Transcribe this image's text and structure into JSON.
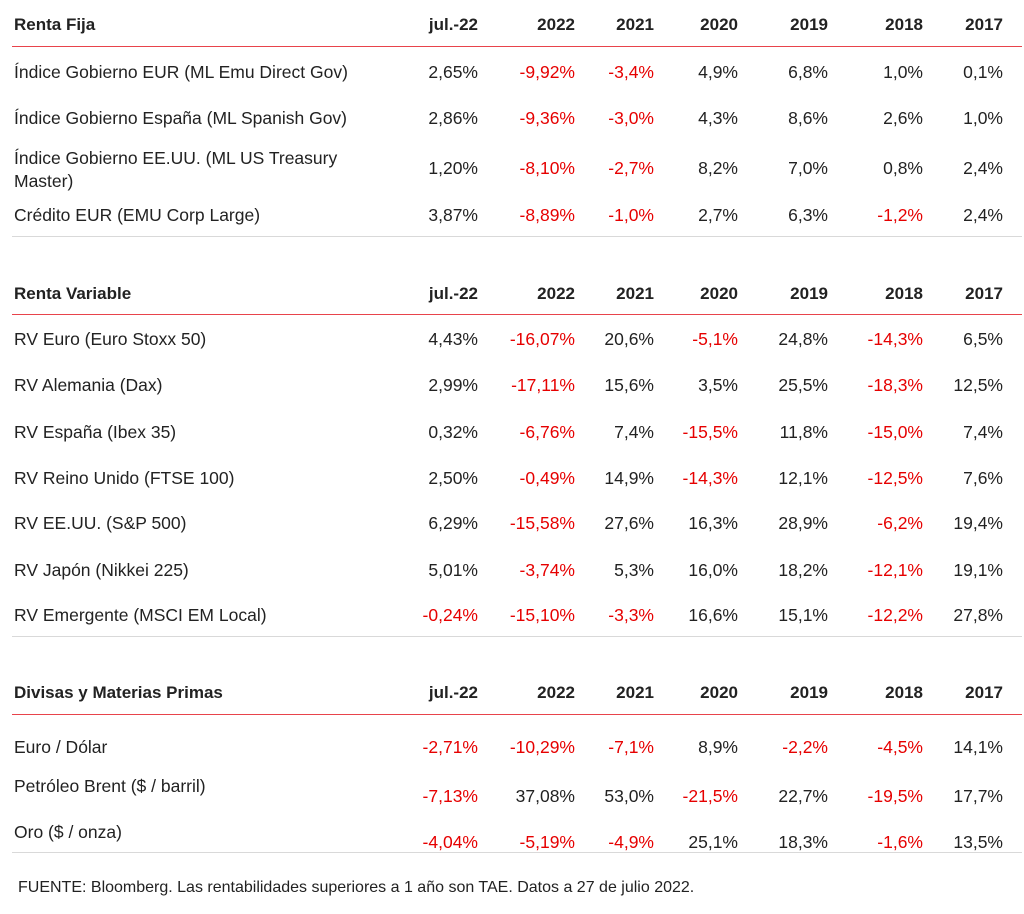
{
  "colors": {
    "negative": "#e60000",
    "header_rule": "#e8434b",
    "text": "#222222"
  },
  "columns": [
    "jul.-22",
    "2022",
    "2021",
    "2020",
    "2019",
    "2018",
    "2017"
  ],
  "chart_data": {
    "type": "table",
    "sections": [
      {
        "title": "Renta Fija",
        "rows": [
          {
            "label": "Índice Gobierno EUR (ML Emu Direct Gov)",
            "values": [
              "2,65%",
              "-9,92%",
              "-3,4%",
              "4,9%",
              "6,8%",
              "1,0%",
              "0,1%"
            ]
          },
          {
            "label": "Índice Gobierno España (ML Spanish Gov)",
            "values": [
              "2,86%",
              "-9,36%",
              "-3,0%",
              "4,3%",
              "8,6%",
              "2,6%",
              "1,0%"
            ]
          },
          {
            "label": "Índice Gobierno EE.UU. (ML US Treasury Master)",
            "values": [
              "1,20%",
              "-8,10%",
              "-2,7%",
              "8,2%",
              "7,0%",
              "0,8%",
              "2,4%"
            ]
          },
          {
            "label": "Crédito EUR (EMU Corp Large)",
            "values": [
              "3,87%",
              "-8,89%",
              "-1,0%",
              "2,7%",
              "6,3%",
              "-1,2%",
              "2,4%"
            ]
          }
        ]
      },
      {
        "title": "Renta Variable",
        "rows": [
          {
            "label": "RV Euro (Euro Stoxx 50)",
            "values": [
              "4,43%",
              "-16,07%",
              "20,6%",
              "-5,1%",
              "24,8%",
              "-14,3%",
              "6,5%"
            ]
          },
          {
            "label": "RV Alemania (Dax)",
            "values": [
              "2,99%",
              "-17,11%",
              "15,6%",
              "3,5%",
              "25,5%",
              "-18,3%",
              "12,5%"
            ]
          },
          {
            "label": "RV España (Ibex 35)",
            "values": [
              "0,32%",
              "-6,76%",
              "7,4%",
              "-15,5%",
              "11,8%",
              "-15,0%",
              "7,4%"
            ]
          },
          {
            "label": "RV Reino Unido (FTSE 100)",
            "values": [
              "2,50%",
              "-0,49%",
              "14,9%",
              "-14,3%",
              "12,1%",
              "-12,5%",
              "7,6%"
            ]
          },
          {
            "label": "RV EE.UU. (S&P 500)",
            "values": [
              "6,29%",
              "-15,58%",
              "27,6%",
              "16,3%",
              "28,9%",
              "-6,2%",
              "19,4%"
            ]
          },
          {
            "label": "RV Japón (Nikkei 225)",
            "values": [
              "5,01%",
              "-3,74%",
              "5,3%",
              "16,0%",
              "18,2%",
              "-12,1%",
              "19,1%"
            ]
          },
          {
            "label": "RV Emergente (MSCI EM Local)",
            "values": [
              "-0,24%",
              "-15,10%",
              "-3,3%",
              "16,6%",
              "15,1%",
              "-12,2%",
              "27,8%"
            ]
          }
        ]
      },
      {
        "title": "Divisas y Materias Primas",
        "rows": [
          {
            "label": "Euro / Dólar",
            "values": [
              "-2,71%",
              "-10,29%",
              "-7,1%",
              "8,9%",
              "-2,2%",
              "-4,5%",
              "14,1%"
            ]
          },
          {
            "label": "Petróleo Brent ($ / barril)",
            "values": [
              "-7,13%",
              "37,08%",
              "53,0%",
              "-21,5%",
              "22,7%",
              "-19,5%",
              "17,7%"
            ]
          },
          {
            "label": "Oro ($ / onza)",
            "values": [
              "-4,04%",
              "-5,19%",
              "-4,9%",
              "25,1%",
              "18,3%",
              "-1,6%",
              "13,5%"
            ]
          }
        ]
      }
    ]
  },
  "footer": "FUENTE: Bloomberg. Las rentabilidades superiores a 1 año son TAE.  Datos a 27 de julio 2022."
}
